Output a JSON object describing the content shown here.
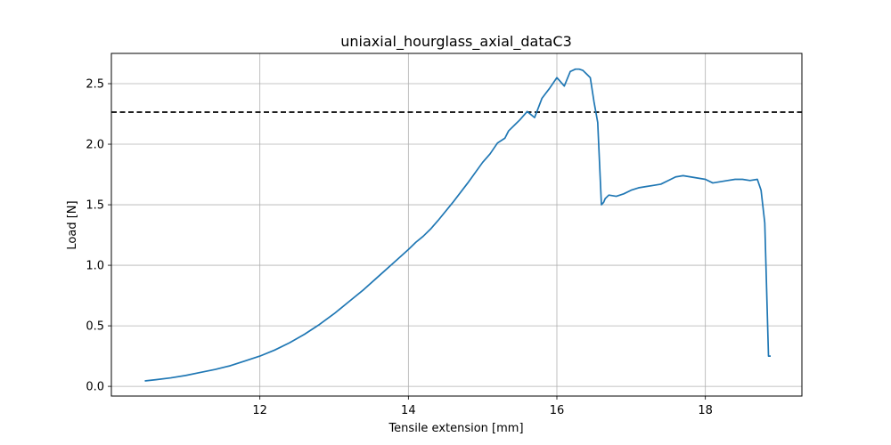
{
  "chart_data": {
    "type": "line",
    "title": "uniaxial_hourglass_axial_dataC3",
    "xlabel": "Tensile extension [mm]",
    "ylabel": "Load [N]",
    "xlim": [
      10.0,
      19.3
    ],
    "ylim": [
      -0.08,
      2.75
    ],
    "xticks": [
      12,
      14,
      16,
      18
    ],
    "xtick_labels": [
      "12",
      "14",
      "16",
      "18"
    ],
    "yticks": [
      0.0,
      0.5,
      1.0,
      1.5,
      2.0,
      2.5
    ],
    "ytick_labels": [
      "0.0",
      "0.5",
      "1.0",
      "1.5",
      "2.0",
      "2.5"
    ],
    "grid": true,
    "series": [
      {
        "color": "#1f77b4",
        "x": [
          10.45,
          10.6,
          10.8,
          11.0,
          11.2,
          11.4,
          11.6,
          11.8,
          12.0,
          12.2,
          12.4,
          12.6,
          12.8,
          13.0,
          13.2,
          13.4,
          13.6,
          13.8,
          14.0,
          14.1,
          14.2,
          14.3,
          14.4,
          14.6,
          14.8,
          15.0,
          15.1,
          15.2,
          15.3,
          15.35,
          15.45,
          15.5,
          15.6,
          15.7,
          15.8,
          15.85,
          15.9,
          16.0,
          16.1,
          16.18,
          16.25,
          16.3,
          16.35,
          16.4,
          16.45,
          16.5,
          16.55,
          16.6,
          16.63,
          16.65,
          16.7,
          16.8,
          16.9,
          17.0,
          17.1,
          17.2,
          17.3,
          17.4,
          17.5,
          17.6,
          17.7,
          17.8,
          17.9,
          18.0,
          18.1,
          18.2,
          18.3,
          18.4,
          18.5,
          18.6,
          18.7,
          18.75,
          18.8,
          18.85,
          18.88
        ],
        "y": [
          0.045,
          0.055,
          0.07,
          0.09,
          0.115,
          0.14,
          0.17,
          0.21,
          0.25,
          0.3,
          0.36,
          0.43,
          0.51,
          0.6,
          0.7,
          0.8,
          0.91,
          1.02,
          1.13,
          1.19,
          1.24,
          1.3,
          1.37,
          1.52,
          1.68,
          1.85,
          1.92,
          2.01,
          2.05,
          2.11,
          2.17,
          2.2,
          2.27,
          2.22,
          2.38,
          2.42,
          2.46,
          2.55,
          2.48,
          2.6,
          2.62,
          2.62,
          2.61,
          2.58,
          2.55,
          2.35,
          2.18,
          1.5,
          1.52,
          1.55,
          1.58,
          1.57,
          1.59,
          1.62,
          1.64,
          1.65,
          1.66,
          1.67,
          1.7,
          1.73,
          1.74,
          1.73,
          1.72,
          1.71,
          1.68,
          1.69,
          1.7,
          1.71,
          1.71,
          1.7,
          1.71,
          1.62,
          1.35,
          0.25,
          0.25
        ]
      }
    ],
    "reference_line": {
      "y": 2.265,
      "color": "#000000",
      "style": "dashed"
    }
  }
}
